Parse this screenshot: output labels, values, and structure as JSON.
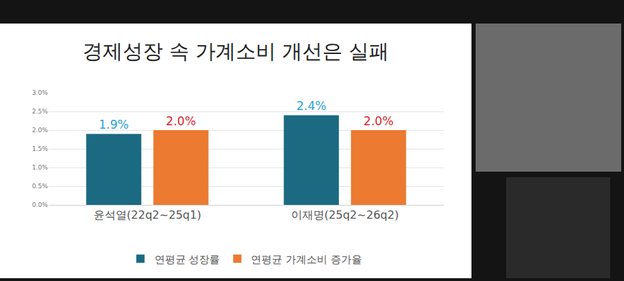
{
  "chart_data": {
    "type": "bar",
    "title": "경제성장 속 가계소비 개선은 실패",
    "categories": [
      "윤석열(22q2~25q1)",
      "이재명(25q2~26q2)"
    ],
    "series": [
      {
        "name": "연평균 성장률",
        "color": "#1b6a82",
        "values": [
          1.9,
          2.4
        ],
        "value_labels": [
          "1.9%",
          "2.4%"
        ]
      },
      {
        "name": "연평균 가계소비 증가율",
        "color": "#ec7a30",
        "values": [
          2.0,
          2.0
        ],
        "value_labels": [
          "2.0%",
          "2.0%"
        ]
      }
    ],
    "ylim": [
      0,
      3.0
    ],
    "yticks": [
      {
        "value": 0,
        "label": "0.0%"
      },
      {
        "value": 0.5,
        "label": "0.5%"
      },
      {
        "value": 1.0,
        "label": "1.0%"
      },
      {
        "value": 1.5,
        "label": "1.5%"
      },
      {
        "value": 2.0,
        "label": "2.0%"
      },
      {
        "value": 2.5,
        "label": "2.5%"
      },
      {
        "value": 3.0,
        "label": "3.0%"
      }
    ],
    "grid": true,
    "legend": "bottom",
    "data_labels": true
  }
}
